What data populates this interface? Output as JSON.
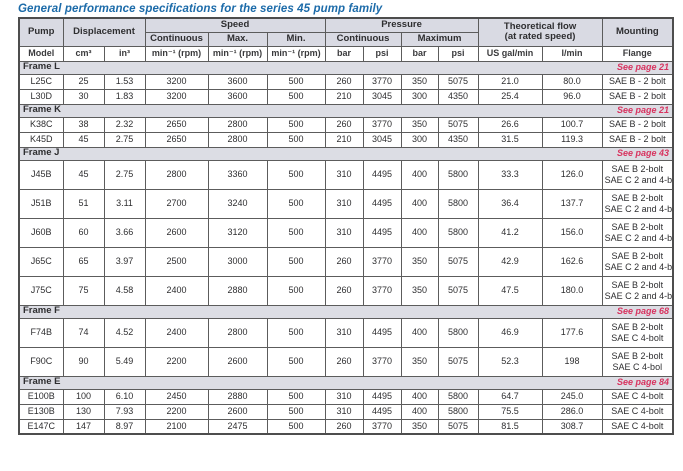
{
  "title": "General performance specifications for the series 45 pump family",
  "colors": {
    "title_blue": "#1c6ba9",
    "header_bg": "#d9dae3",
    "frame_row_bg": "#dcdde4",
    "see_page_red": "#d8335f",
    "border_gray": "#5c5c5c"
  },
  "table": {
    "top_headers": {
      "pump": "Pump",
      "displacement": "Displacement",
      "speed": "Speed",
      "pressure": "Pressure",
      "flow_line1": "Theoretical flow",
      "flow_line2": "(at rated speed)",
      "mounting": "Mounting"
    },
    "sub_headers": {
      "speed_continuous": "Continuous",
      "speed_max": "Max.",
      "speed_min": "Min.",
      "pressure_continuous": "Continuous",
      "pressure_maximum": "Maximum"
    },
    "unit_row": [
      "Model",
      "cm³",
      "in³",
      "min⁻¹ (rpm)",
      "min⁻¹ (rpm)",
      "min⁻¹ (rpm)",
      "bar",
      "psi",
      "bar",
      "psi",
      "US gal/min",
      "l/min",
      "Flange"
    ],
    "sections": [
      {
        "frame": "Frame L",
        "see_page": "See page 21",
        "rows": [
          {
            "cells": [
              "L25C",
              "25",
              "1.53",
              "3200",
              "3600",
              "500",
              "260",
              "3770",
              "350",
              "5075",
              "21.0",
              "80.0"
            ],
            "mounting": [
              "SAE B - 2 bolt"
            ]
          },
          {
            "cells": [
              "L30D",
              "30",
              "1.83",
              "3200",
              "3600",
              "500",
              "210",
              "3045",
              "300",
              "4350",
              "25.4",
              "96.0"
            ],
            "mounting": [
              "SAE B - 2 bolt"
            ]
          }
        ]
      },
      {
        "frame": "Frame K",
        "see_page": "See page 21",
        "rows": [
          {
            "cells": [
              "K38C",
              "38",
              "2.32",
              "2650",
              "2800",
              "500",
              "260",
              "3770",
              "350",
              "5075",
              "26.6",
              "100.7"
            ],
            "mounting": [
              "SAE B - 2 bolt"
            ]
          },
          {
            "cells": [
              "K45D",
              "45",
              "2.75",
              "2650",
              "2800",
              "500",
              "210",
              "3045",
              "300",
              "4350",
              "31.5",
              "119.3"
            ],
            "mounting": [
              "SAE B - 2 bolt"
            ]
          }
        ]
      },
      {
        "frame": "Frame J",
        "see_page": "See page 43",
        "rows": [
          {
            "cells": [
              "J45B",
              "45",
              "2.75",
              "2800",
              "3360",
              "500",
              "310",
              "4495",
              "400",
              "5800",
              "33.3",
              "126.0"
            ],
            "mounting": [
              "SAE B 2-bolt",
              "SAE C 2 and 4-bolt"
            ]
          },
          {
            "cells": [
              "J51B",
              "51",
              "3.11",
              "2700",
              "3240",
              "500",
              "310",
              "4495",
              "400",
              "5800",
              "36.4",
              "137.7"
            ],
            "mounting": [
              "SAE B 2-bolt",
              "SAE C 2 and 4-bolt"
            ]
          },
          {
            "cells": [
              "J60B",
              "60",
              "3.66",
              "2600",
              "3120",
              "500",
              "310",
              "4495",
              "400",
              "5800",
              "41.2",
              "156.0"
            ],
            "mounting": [
              "SAE B 2-bolt",
              "SAE C 2 and 4-bolt"
            ]
          },
          {
            "cells": [
              "J65C",
              "65",
              "3.97",
              "2500",
              "3000",
              "500",
              "260",
              "3770",
              "350",
              "5075",
              "42.9",
              "162.6"
            ],
            "mounting": [
              "SAE B 2-bolt",
              "SAE C 2 and 4-bolt"
            ]
          },
          {
            "cells": [
              "J75C",
              "75",
              "4.58",
              "2400",
              "2880",
              "500",
              "260",
              "3770",
              "350",
              "5075",
              "47.5",
              "180.0"
            ],
            "mounting": [
              "SAE B 2-bolt",
              "SAE C 2 and 4-bolt"
            ]
          }
        ]
      },
      {
        "frame": "Frame F",
        "see_page": "See page 68",
        "rows": [
          {
            "cells": [
              "F74B",
              "74",
              "4.52",
              "2400",
              "2800",
              "500",
              "310",
              "4495",
              "400",
              "5800",
              "46.9",
              "177.6"
            ],
            "mounting": [
              "SAE B 2-bolt",
              "SAE C 4-bolt"
            ]
          },
          {
            "cells": [
              "F90C",
              "90",
              "5.49",
              "2200",
              "2600",
              "500",
              "260",
              "3770",
              "350",
              "5075",
              "52.3",
              "198"
            ],
            "mounting": [
              "SAE B 2-bolt",
              "SAE C 4-bol"
            ]
          }
        ]
      },
      {
        "frame": "Frame E",
        "see_page": "See page 84",
        "rows": [
          {
            "cells": [
              "E100B",
              "100",
              "6.10",
              "2450",
              "2880",
              "500",
              "310",
              "4495",
              "400",
              "5800",
              "64.7",
              "245.0"
            ],
            "mounting": [
              "SAE C 4-bolt"
            ]
          },
          {
            "cells": [
              "E130B",
              "130",
              "7.93",
              "2200",
              "2600",
              "500",
              "310",
              "4495",
              "400",
              "5800",
              "75.5",
              "286.0"
            ],
            "mounting": [
              "SAE C 4-bolt"
            ]
          },
          {
            "cells": [
              "E147C",
              "147",
              "8.97",
              "2100",
              "2475",
              "500",
              "260",
              "3770",
              "350",
              "5075",
              "81.5",
              "308.7"
            ],
            "mounting": [
              "SAE C 4-bolt"
            ]
          }
        ]
      }
    ]
  }
}
